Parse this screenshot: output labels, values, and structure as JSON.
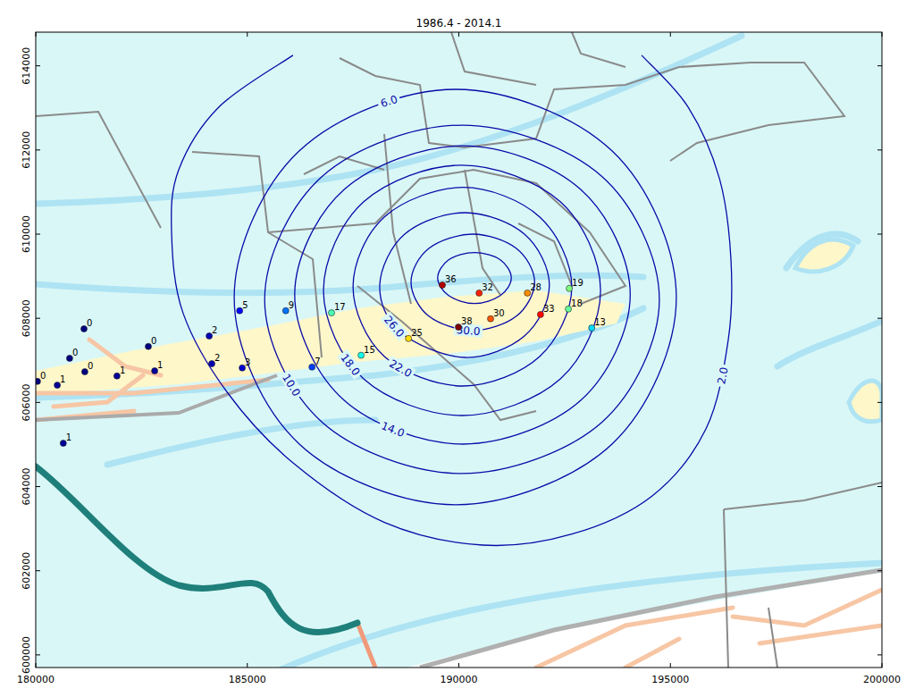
{
  "chart_data": {
    "type": "contour",
    "title": "1986.4 - 2014.1",
    "xlim": [
      180000,
      200000
    ],
    "ylim": [
      599700,
      614800
    ],
    "xticks": [
      180000,
      185000,
      190000,
      195000,
      200000
    ],
    "yticks": [
      600000,
      602000,
      604000,
      606000,
      608000,
      610000,
      612000,
      614000
    ],
    "grid": false,
    "data_labels": true,
    "color": "#0a0aa8",
    "marker": "circle",
    "contours": [
      {
        "level": 2,
        "label": "2.0",
        "x": [
          186080,
          184330,
          183380,
          183210,
          183480,
          184540,
          186120,
          188240,
          190560,
          192670,
          194570,
          195840,
          196370,
          196430,
          196160,
          195420,
          194320
        ],
        "y": [
          614250,
          613020,
          611530,
          610040,
          608130,
          606220,
          604530,
          603150,
          602610,
          602870,
          603780,
          605370,
          607500,
          609410,
          611320,
          613020,
          614250
        ]
      },
      {
        "level": 6,
        "label": "6.0",
        "x": [
          195140,
          193620,
          189930,
          186230,
          184690,
          186230,
          189930,
          193620,
          195140
        ],
        "y": [
          608490,
          605010,
          603570,
          605010,
          608490,
          611980,
          613440,
          611980,
          608490
        ]
      },
      {
        "level": 10,
        "label": "10.0",
        "x": [
          194740,
          193370,
          190070,
          186780,
          185410,
          186780,
          190070,
          193370,
          194740
        ],
        "y": [
          608450,
          605520,
          604310,
          605520,
          608450,
          611380,
          612590,
          611380,
          608450
        ]
      },
      {
        "level": 14,
        "label": "14.0",
        "x": [
          194050,
          192880,
          190100,
          187290,
          186120,
          187290,
          190100,
          192880,
          194050
        ],
        "y": [
          608560,
          606050,
          605010,
          606050,
          608560,
          611060,
          612100,
          611060,
          608560
        ]
      },
      {
        "level": 18,
        "label": "18.0",
        "x": [
          193350,
          192400,
          190070,
          187750,
          186800,
          187750,
          190070,
          192400,
          193350
        ],
        "y": [
          608660,
          606560,
          605690,
          606560,
          608660,
          610770,
          611640,
          610770,
          608660
        ]
      },
      {
        "level": 22,
        "label": "22.0",
        "x": [
          192670,
          191910,
          190100,
          188240,
          187500,
          188240,
          190100,
          191910,
          192670
        ],
        "y": [
          608750,
          607090,
          606390,
          607090,
          608750,
          610410,
          611110,
          610410,
          608750
        ]
      },
      {
        "level": 26,
        "label": "26.0",
        "x": [
          192140,
          191550,
          190140,
          188620,
          188130,
          188720,
          190140,
          191550,
          192140
        ],
        "y": [
          608790,
          607580,
          607070,
          607670,
          608790,
          610000,
          610510,
          610000,
          608790
        ]
      },
      {
        "level": 30,
        "label": "30.0",
        "x": [
          191790,
          191360,
          190330,
          189290,
          188870,
          189290,
          190330,
          191360,
          191790
        ],
        "y": [
          608860,
          608050,
          607710,
          608050,
          608860,
          609660,
          610000,
          609660,
          608860
        ]
      },
      {
        "level": 34,
        "label": null,
        "x": [
          191240,
          190980,
          190370,
          189760,
          189500,
          189760,
          190370,
          190980,
          191240
        ],
        "y": [
          608960,
          608540,
          608350,
          608540,
          608960,
          609390,
          609560,
          609390,
          608960
        ]
      }
    ],
    "points": {
      "x": [
        180040,
        180510,
        180650,
        180800,
        181140,
        181160,
        181920,
        182660,
        182810,
        184100,
        184160,
        184880,
        184820,
        185910,
        186530,
        186990,
        187690,
        188810,
        189610,
        190480,
        189990,
        190750,
        191620,
        191930,
        192610,
        192590,
        193140
      ],
      "y": [
        606500,
        606410,
        605030,
        607050,
        607750,
        606730,
        606630,
        607330,
        606750,
        607580,
        606920,
        606820,
        608180,
        608180,
        606840,
        608130,
        607120,
        607520,
        608790,
        608600,
        607790,
        607990,
        608600,
        608090,
        608710,
        608220,
        607770
      ],
      "values": [
        0,
        1,
        1,
        0,
        0,
        0,
        1,
        0,
        1,
        2,
        2,
        3,
        5,
        9,
        7,
        17,
        15,
        25,
        36,
        32,
        38,
        30,
        28,
        33,
        19,
        18,
        13
      ]
    }
  }
}
